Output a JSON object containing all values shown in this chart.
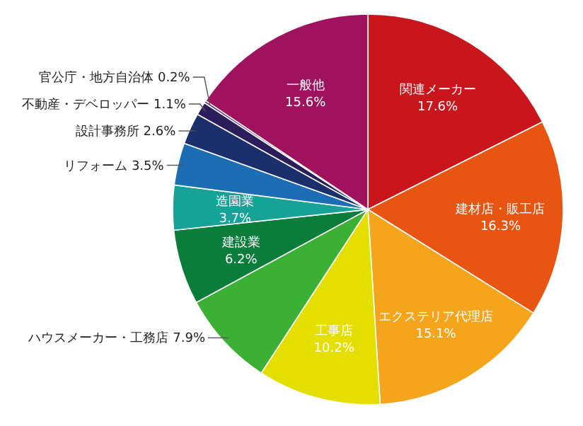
{
  "chart_data": {
    "type": "pie",
    "value_labels": [
      "17.6%",
      "16.3%",
      "15.1%",
      "10.2%",
      "7.9%",
      "6.2%",
      "3.7%",
      "3.5%",
      "2.6%",
      "1.1%",
      "0.2%",
      "15.6%"
    ],
    "categories": [
      "関連メーカー",
      "建材店・販工店",
      "エクステリア代理店",
      "工事店",
      "ハウスメーカー・工務店",
      "建設業",
      "造園業",
      "リフォーム",
      "設計事務所",
      "不動産・デベロッパー",
      "官公庁・地方自治体",
      "一般他"
    ],
    "values": [
      17.6,
      16.3,
      15.1,
      10.2,
      7.9,
      6.2,
      3.7,
      3.5,
      2.6,
      1.1,
      0.2,
      15.6
    ],
    "colors": [
      "#c9161d",
      "#e85512",
      "#f5a51c",
      "#e5df00",
      "#3caf35",
      "#0b7d3a",
      "#17a297",
      "#1d6db5",
      "#1b2f6c",
      "#2b1c5c",
      "#5b2c7d",
      "#a1125e"
    ]
  }
}
